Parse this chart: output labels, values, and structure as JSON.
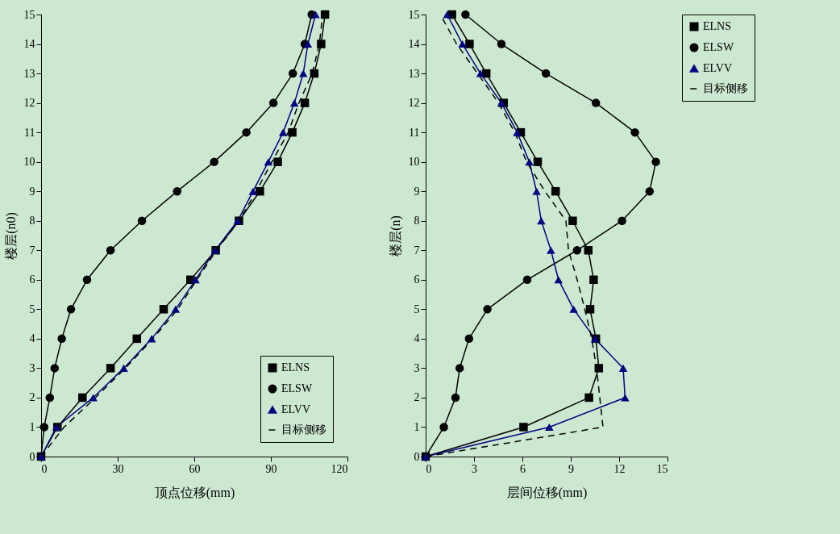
{
  "chart_data": [
    {
      "type": "line",
      "xlabel": "顶点位移(mm)",
      "ylabel": "楼层(n0)",
      "xlim": [
        0,
        120
      ],
      "xticks": [
        0,
        30,
        60,
        90,
        120
      ],
      "ylim": [
        0,
        15
      ],
      "yticks": [
        0,
        1,
        2,
        3,
        4,
        5,
        6,
        7,
        8,
        9,
        10,
        11,
        12,
        13,
        14,
        15
      ],
      "grid": false,
      "legend": "bottom right",
      "series": [
        {
          "name": "ELNS",
          "color": "#000000",
          "marker": "square",
          "line_style": "solid",
          "x": [
            0,
            6.4,
            16.2,
            27.2,
            37.5,
            48,
            58.5,
            68.4,
            77.5,
            85.7,
            92.7,
            98.4,
            103.3,
            107,
            109.7,
            111.2
          ],
          "values": [
            0,
            1,
            2,
            3,
            4,
            5,
            6,
            7,
            8,
            9,
            10,
            11,
            12,
            13,
            14,
            15
          ]
        },
        {
          "name": "ELSW",
          "color": "#000000",
          "marker": "circle",
          "line_style": "solid",
          "x": [
            0,
            1.2,
            3.4,
            5.3,
            8.1,
            11.7,
            18,
            27.2,
            39.5,
            53.3,
            67.8,
            80.4,
            91,
            98.6,
            103.3,
            106
          ],
          "values": [
            0,
            1,
            2,
            3,
            4,
            5,
            6,
            7,
            8,
            9,
            10,
            11,
            12,
            13,
            14,
            15
          ]
        },
        {
          "name": "ELVV",
          "color": "#000080",
          "marker": "triangle",
          "line_style": "solid",
          "x": [
            0,
            6,
            20.4,
            32.4,
            43.3,
            52.7,
            60.5,
            68.2,
            77,
            83,
            89,
            94.8,
            99.2,
            102.7,
            104.5,
            107.5
          ],
          "values": [
            0,
            1,
            2,
            3,
            4,
            5,
            6,
            7,
            8,
            9,
            10,
            11,
            12,
            13,
            14,
            15
          ]
        },
        {
          "name": "目标侧移",
          "color": "#000000",
          "marker": "none",
          "line_style": "dashed",
          "x": [
            0,
            9,
            21.3,
            33,
            43.8,
            53.5,
            61,
            68.7,
            77.5,
            84.3,
            90.4,
            96.8,
            101,
            106.2,
            109,
            110.3
          ],
          "values": [
            0,
            1,
            2,
            3,
            4,
            5,
            6,
            7,
            8,
            9,
            10,
            11,
            12,
            13,
            14,
            15
          ]
        }
      ]
    },
    {
      "type": "line",
      "xlabel": "层间位移(mm)",
      "ylabel": "楼层(n)",
      "xlim": [
        0,
        15
      ],
      "xticks": [
        0,
        3,
        6,
        9,
        12,
        15
      ],
      "ylim": [
        0,
        15
      ],
      "yticks": [
        0,
        1,
        2,
        3,
        4,
        5,
        6,
        7,
        8,
        9,
        10,
        11,
        12,
        13,
        14,
        15
      ],
      "grid": false,
      "legend": "right",
      "series": [
        {
          "name": "ELNS",
          "color": "#000000",
          "marker": "square",
          "line_style": "solid",
          "x": [
            0,
            6.07,
            10.13,
            10.74,
            10.56,
            10.2,
            10.42,
            10.09,
            9.12,
            8.06,
            6.95,
            5.9,
            4.84,
            3.76,
            2.72,
            1.63
          ],
          "values": [
            0,
            1,
            2,
            3,
            4,
            5,
            6,
            7,
            8,
            9,
            10,
            11,
            12,
            13,
            14,
            15
          ]
        },
        {
          "name": "ELSW",
          "color": "#000000",
          "marker": "circle",
          "line_style": "solid",
          "x": [
            0,
            1.13,
            1.85,
            2.11,
            2.69,
            3.83,
            6.3,
            9.39,
            12.18,
            13.89,
            14.28,
            12.98,
            10.56,
            7.46,
            4.7,
            2.47
          ],
          "values": [
            0,
            1,
            2,
            3,
            4,
            5,
            6,
            7,
            8,
            9,
            10,
            11,
            12,
            13,
            14,
            15
          ]
        },
        {
          "name": "ELVV",
          "color": "#000080",
          "marker": "triangle",
          "line_style": "solid",
          "x": [
            0,
            7.67,
            12.37,
            12.25,
            10.5,
            9.18,
            8.24,
            7.77,
            7.17,
            6.88,
            6.43,
            5.68,
            4.7,
            3.4,
            2.28,
            1.34
          ],
          "values": [
            0,
            1,
            2,
            3,
            4,
            5,
            6,
            7,
            8,
            9,
            10,
            11,
            12,
            13,
            14,
            15
          ]
        },
        {
          "name": "目标侧移",
          "color": "#000000",
          "marker": "none",
          "line_style": "dashed",
          "x": [
            0,
            11,
            10.8,
            10.6,
            10.3,
            9.87,
            9.4,
            8.86,
            8.7,
            7.4,
            6.26,
            5.53,
            4.52,
            3.22,
            1.92,
            0.91
          ],
          "values": [
            0,
            1,
            2,
            3,
            4,
            5,
            6,
            7,
            8,
            9,
            10,
            11,
            12,
            13,
            14,
            15
          ]
        }
      ]
    }
  ]
}
